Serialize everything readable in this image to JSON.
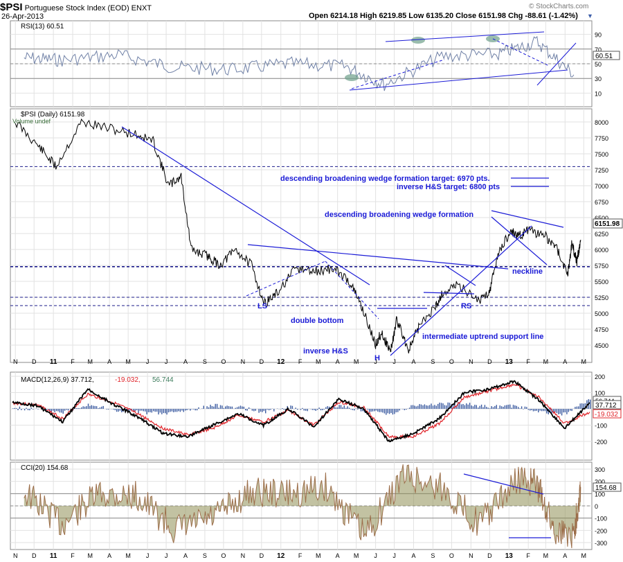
{
  "header": {
    "symbol": "$PSI",
    "name": "Portuguese Stock Index (EOD)",
    "exchange": "ENXT",
    "date": "26-Apr-2013",
    "ohlc": "Open 6214.18  High 6219.85  Low 6135.20  Close 6151.98  Chg -88.61 (-1.42%)",
    "brand": "© StockCharts.com"
  },
  "x_axis": {
    "labels": [
      "N",
      "D",
      "11",
      "F",
      "M",
      "A",
      "M",
      "J",
      "J",
      "A",
      "S",
      "O",
      "N",
      "D",
      "12",
      "F",
      "M",
      "A",
      "M",
      "J",
      "J",
      "A",
      "S",
      "O",
      "N",
      "D",
      "13",
      "F",
      "M",
      "A",
      "M"
    ],
    "bold": [
      "11",
      "12",
      "13"
    ]
  },
  "rsi_panel": {
    "label": "RSI(13) 60.51",
    "last": "60.51",
    "ticks": [
      "90",
      "70",
      "50",
      "30",
      "10"
    ]
  },
  "price_panel": {
    "label": "$PSI (Daily) 6151.98",
    "volume_note": "Volume undef",
    "last": "6151.98",
    "ticks": [
      "8000",
      "7750",
      "7500",
      "7250",
      "7000",
      "6750",
      "6500",
      "6250",
      "6000",
      "5750",
      "5500",
      "5250",
      "5000",
      "4750",
      "4500"
    ]
  },
  "annotations": {
    "wedge_target": "descending broadening wedge formation target: 6970 pts.",
    "hs_target": "inverse H&S target: 6800 pts",
    "wedge": "descending broadening wedge formation",
    "neckline": "neckline",
    "ls": "LS",
    "rs": "RS",
    "double_bottom": "double bottom",
    "inverse_hs": "inverse  H&S",
    "head": "H",
    "uptrend": "intermediate uptrend support line"
  },
  "macd_panel": {
    "label_main": "MACD(12,26,9) 37.712,",
    "label_signal": "-19.032,",
    "label_hist": "56.744",
    "last_macd": "37.712",
    "last_signal": "-19.032",
    "last_hist": "56.744",
    "ticks": [
      "200",
      "100",
      "0",
      "-100",
      "-200"
    ]
  },
  "cci_panel": {
    "label": "CCI(20) 154.68",
    "last": "154.68",
    "ticks": [
      "300",
      "200",
      "100",
      "0",
      "-100",
      "-200",
      "-300"
    ]
  },
  "colors": {
    "annotation": "#1a1ad6",
    "signal": "#e0242a",
    "histogram": "#3a5aa0",
    "rsi_line": "#6f80a6",
    "cci_line": "#9c6e4a",
    "cci_fill": "#8f8f56",
    "rsi_fill": "#6ea08a"
  },
  "chart_data": [
    {
      "type": "line",
      "name": "RSI(13)",
      "ylim": [
        0,
        100
      ],
      "x": [
        "2010-11",
        "2011-01",
        "2011-04",
        "2011-07",
        "2011-10",
        "2012-01",
        "2012-04",
        "2012-06",
        "2012-09",
        "2012-12",
        "2013-02",
        "2013-04"
      ],
      "values": [
        58,
        55,
        62,
        45,
        42,
        50,
        46,
        22,
        60,
        63,
        80,
        35
      ],
      "last": 60.51
    },
    {
      "type": "line",
      "name": "$PSI (Daily)",
      "ylim": [
        4300,
        8300
      ],
      "x": [
        "2010-11-01",
        "2010-12-10",
        "2011-01-05",
        "2011-02-15",
        "2011-03-31",
        "2011-05-15",
        "2011-06-10",
        "2011-07-05",
        "2011-07-25",
        "2011-08-10",
        "2011-09-05",
        "2011-09-25",
        "2011-10-20",
        "2011-11-15",
        "2011-12-05",
        "2011-12-25",
        "2012-01-25",
        "2012-02-25",
        "2012-03-25",
        "2012-04-20",
        "2012-05-10",
        "2012-06-01",
        "2012-06-10",
        "2012-06-25",
        "2012-07-05",
        "2012-07-24",
        "2012-08-10",
        "2012-09-05",
        "2012-09-15",
        "2012-10-10",
        "2012-11-15",
        "2012-12-01",
        "2012-12-15",
        "2013-01-05",
        "2013-01-15",
        "2013-02-01",
        "2013-03-01",
        "2013-03-20",
        "2013-04-05",
        "2013-04-12",
        "2013-04-20",
        "2013-04-26"
      ],
      "values": [
        8000,
        7600,
        7300,
        8000,
        7900,
        7800,
        7700,
        7000,
        7150,
        6000,
        5900,
        5750,
        6000,
        5750,
        5150,
        5300,
        5700,
        5650,
        5700,
        5500,
        5100,
        4500,
        4700,
        4400,
        4900,
        4420,
        4800,
        5100,
        5300,
        5450,
        5200,
        5350,
        5950,
        6300,
        6200,
        6300,
        6200,
        6000,
        5600,
        6100,
        5800,
        6152
      ]
    },
    {
      "type": "line",
      "name": "MACD(12,26,9)",
      "ylim": [
        -250,
        200
      ],
      "series": [
        {
          "name": "MACD",
          "values": [
            40,
            20,
            -80,
            120,
            30,
            -50,
            -150,
            -170,
            -100,
            -30,
            -100,
            0,
            -110,
            60,
            0,
            -200,
            -150,
            -60,
            100,
            120,
            170,
            50,
            -120,
            38
          ]
        },
        {
          "name": "Signal",
          "values": [
            35,
            25,
            -60,
            90,
            40,
            -30,
            -120,
            -160,
            -120,
            -40,
            -80,
            -10,
            -100,
            40,
            10,
            -170,
            -170,
            -90,
            70,
            110,
            150,
            70,
            -90,
            -19
          ]
        },
        {
          "name": "Histogram",
          "values": [
            5,
            -5,
            -20,
            30,
            -10,
            -20,
            -30,
            -10,
            20,
            10,
            -20,
            10,
            -10,
            20,
            -10,
            -30,
            20,
            30,
            30,
            10,
            20,
            -20,
            -30,
            57
          ]
        }
      ]
    },
    {
      "type": "line",
      "name": "CCI(20)",
      "ylim": [
        -330,
        330
      ],
      "x": [
        "2010-11",
        "2011-01",
        "2011-03",
        "2011-05",
        "2011-07",
        "2011-09",
        "2011-11",
        "2012-01",
        "2012-03",
        "2012-05",
        "2012-07",
        "2012-09",
        "2012-11",
        "2013-01",
        "2013-02",
        "2013-03",
        "2013-04",
        "2013-04-26"
      ],
      "values": [
        120,
        -150,
        100,
        80,
        -200,
        -100,
        120,
        100,
        150,
        -250,
        250,
        150,
        -150,
        220,
        180,
        -200,
        -230,
        155
      ]
    }
  ]
}
